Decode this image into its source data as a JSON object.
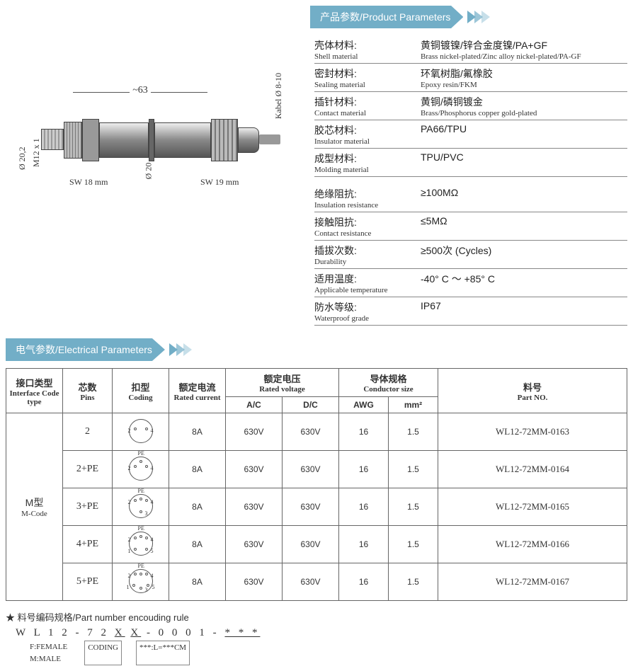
{
  "sections": {
    "product_params": {
      "title_cn": "产品参数/",
      "title_en": "Product Parameters"
    },
    "elec_params": {
      "title_cn": "电气参数/",
      "title_en": "Electrical Parameters"
    }
  },
  "diagram": {
    "dim_length": "~63",
    "dim_diam_outer": "Ø 20,2",
    "dim_thread": "M12 x 1",
    "dim_d20": "Ø 20",
    "sw18": "SW 18 mm",
    "sw19": "SW 19 mm",
    "cable": "Kabel Ø 8-10"
  },
  "product_params": [
    {
      "label_cn": "壳体材料:",
      "label_en": "Shell material",
      "val_cn": "黄铜镀镍/锌合金度镍/PA+GF",
      "val_en": "Brass nickel-plated/Zinc alloy nickel-plated/PA-GF"
    },
    {
      "label_cn": "密封材料:",
      "label_en": "Sealing material",
      "val_cn": "环氧树脂/氟橡胶",
      "val_en": "Epoxy resin/FKM"
    },
    {
      "label_cn": "插针材料:",
      "label_en": "Contact material",
      "val_cn": "黄铜/磷铜镀金",
      "val_en": "Brass/Phosphorus copper gold-plated"
    },
    {
      "label_cn": "胶芯材料:",
      "label_en": "Insulator material",
      "val_cn": "PA66/TPU",
      "val_en": ""
    },
    {
      "label_cn": "成型材料:",
      "label_en": "Molding material",
      "val_cn": "TPU/PVC",
      "val_en": ""
    }
  ],
  "product_params2": [
    {
      "label_cn": "绝缘阻抗:",
      "label_en": "Insulation resistance",
      "val_cn": "≥100MΩ",
      "val_en": ""
    },
    {
      "label_cn": "接触阻抗:",
      "label_en": "Contact resistance",
      "val_cn": "≤5MΩ",
      "val_en": ""
    },
    {
      "label_cn": "插拔次数:",
      "label_en": "Durability",
      "val_cn": "≥500次 (Cycles)",
      "val_en": ""
    },
    {
      "label_cn": "适用温度:",
      "label_en": "Applicable temperature",
      "val_cn": "-40° C ～ +85° C",
      "val_en": ""
    },
    {
      "label_cn": "防水等级:",
      "label_en": "Waterproof grade",
      "val_cn": "IP67",
      "val_en": ""
    }
  ],
  "elec_headers": {
    "iface": {
      "cn": "接口类型",
      "en": "Interface Code type"
    },
    "pins": {
      "cn": "芯数",
      "en": "Pins"
    },
    "coding": {
      "cn": "扣型",
      "en": "Coding"
    },
    "current": {
      "cn": "额定电流",
      "en": "Rated current"
    },
    "voltage": {
      "cn": "额定电压",
      "en": "Rated voltage"
    },
    "ac": "A/C",
    "dc": "D/C",
    "conductor": {
      "cn": "导体规格",
      "en": "Conductor size"
    },
    "awg": "AWG",
    "mm2": "mm²",
    "partno": {
      "cn": "料号",
      "en": "Part NO."
    }
  },
  "iface_label": {
    "cn": "M型",
    "en": "M-Code"
  },
  "elec_rows": [
    {
      "pins": "2",
      "current": "8A",
      "ac": "630V",
      "dc": "630V",
      "awg": "16",
      "mm2": "1.5",
      "part": "WL12-72MM-0163",
      "dots": 2,
      "pe": false
    },
    {
      "pins": "2+PE",
      "current": "8A",
      "ac": "630V",
      "dc": "630V",
      "awg": "16",
      "mm2": "1.5",
      "part": "WL12-72MM-0164",
      "dots": 2,
      "pe": true
    },
    {
      "pins": "3+PE",
      "current": "8A",
      "ac": "630V",
      "dc": "630V",
      "awg": "16",
      "mm2": "1.5",
      "part": "WL12-72MM-0165",
      "dots": 3,
      "pe": true
    },
    {
      "pins": "4+PE",
      "current": "8A",
      "ac": "630V",
      "dc": "630V",
      "awg": "16",
      "mm2": "1.5",
      "part": "WL12-72MM-0166",
      "dots": 4,
      "pe": true
    },
    {
      "pins": "5+PE",
      "current": "8A",
      "ac": "630V",
      "dc": "630V",
      "awg": "16",
      "mm2": "1.5",
      "part": "WL12-72MM-0167",
      "dots": 5,
      "pe": true
    }
  ],
  "footnote": {
    "star": "★",
    "title": "料号编码规格/Part number encouding rule",
    "code_plain": "W L 1 2 - 7 2 ",
    "code_u1": "X",
    "code_sp1": " ",
    "code_u2": "X",
    "code_mid": " - 0 0 0 1 - ",
    "code_u3": "* * *",
    "leg1": "F:FEMALE\nM:MALE",
    "leg2": "CODING",
    "leg3": "***:L=***CM"
  },
  "colors": {
    "header_bg": "#72aec7",
    "border": "#666666",
    "text": "#333333"
  }
}
